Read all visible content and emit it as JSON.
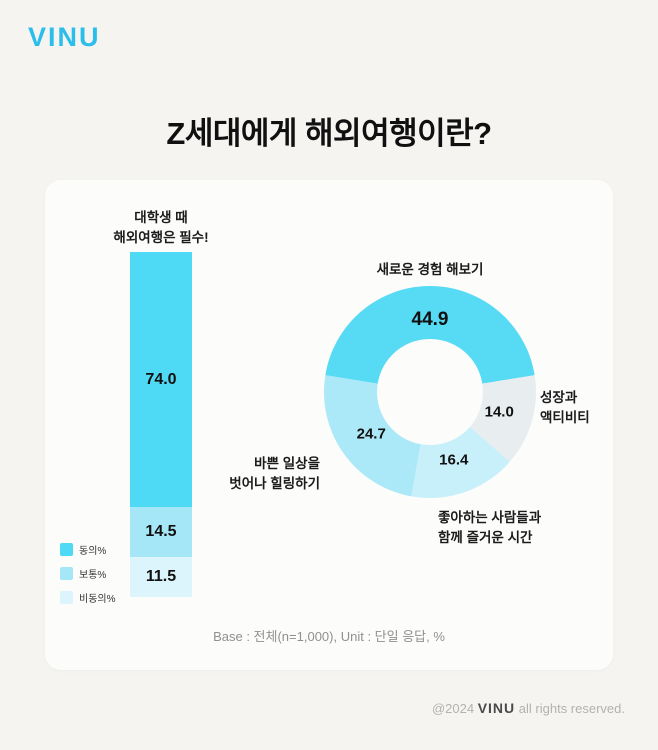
{
  "logo": "VINU",
  "title": "Z세대에게 해외여행이란?",
  "bar_chart_title_lines": [
    "대학생 때",
    "해외여행은 필수!"
  ],
  "chart_data": [
    {
      "type": "bar",
      "variant": "stacked-vertical-column",
      "title": "대학생 때 해외여행은 필수!",
      "categories": [
        "동의%",
        "보통%",
        "비동의%"
      ],
      "values": [
        74.0,
        14.5,
        11.5
      ],
      "colors": [
        "#4ED9F4",
        "#A6E7F7",
        "#DCF5FC"
      ],
      "unit": "%",
      "ylim": [
        0,
        100
      ],
      "legend_position": "bottom-left"
    },
    {
      "type": "pie",
      "variant": "donut",
      "unit": "%",
      "slices": [
        {
          "label": "새로운 경험 해보기",
          "lines": [
            "새로운 경험 해보기"
          ],
          "value": 44.9,
          "color": "#57DBF5"
        },
        {
          "label": "성장과 액티비티",
          "lines": [
            "성장과",
            "액티비티"
          ],
          "value": 14.0,
          "color": "#E8EEF0"
        },
        {
          "label": "좋아하는 사람들과 함께 즐거운 시간",
          "lines": [
            "좋아하는 사람들과",
            "함께 즐거운 시간"
          ],
          "value": 16.4,
          "color": "#C8F0FA"
        },
        {
          "label": "바쁜 일상을 벗어나 힐링하기",
          "lines": [
            "바쁜 일상을",
            "벗어나 힐링하기"
          ],
          "value": 24.7,
          "color": "#ACE9F8"
        }
      ]
    }
  ],
  "base_note": "Base : 전체(n=1,000), Unit : 단일 응답, %",
  "footer": {
    "prefix": "@2024",
    "brand": "VINU",
    "suffix": "all rights reserved."
  }
}
